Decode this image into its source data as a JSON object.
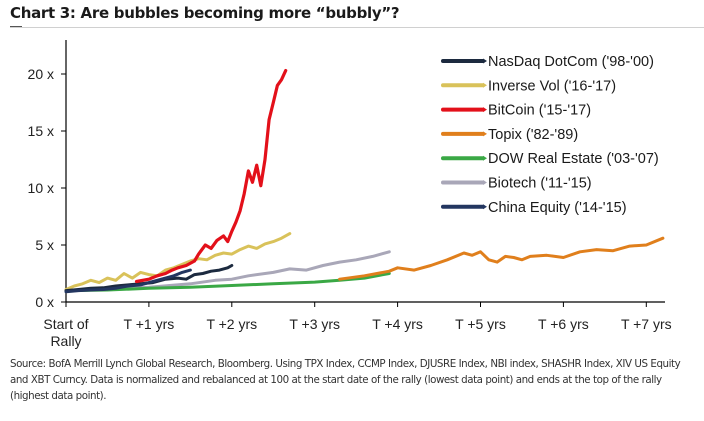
{
  "title": "Chart 3: Are bubbles becoming more “bubbly”?",
  "footnote": "Source: BofA Merrill Lynch Global Research, Bloomberg. Using TPX Index, CCMP Index, DJUSRE Index, NBI index, SHASHR Index, XIV US Equity and XBT Curncy. Data is normalized and rebalanced at 100 at the start date of the rally (lowest data point) and ends at the top of the rally (highest data point).",
  "chart_data": {
    "type": "line",
    "title": "Chart 3: Are bubbles becoming more “bubbly”?",
    "xlabel": "",
    "ylabel": "",
    "xlim": [
      0,
      7.25
    ],
    "ylim": [
      0,
      23
    ],
    "grid": false,
    "legend_position": "top-right",
    "x_ticks": [
      {
        "value": 0,
        "label": [
          "Start of",
          "Rally"
        ]
      },
      {
        "value": 1,
        "label": [
          "T +1 yrs"
        ]
      },
      {
        "value": 2,
        "label": [
          "T +2 yrs"
        ]
      },
      {
        "value": 3,
        "label": [
          "T +3 yrs"
        ]
      },
      {
        "value": 4,
        "label": [
          "T +4 yrs"
        ]
      },
      {
        "value": 5,
        "label": [
          "T +5 yrs"
        ]
      },
      {
        "value": 6,
        "label": [
          "T +6 yrs"
        ]
      },
      {
        "value": 7,
        "label": [
          "T +7 yrs"
        ]
      }
    ],
    "y_ticks": [
      {
        "value": 0,
        "label": "0 x"
      },
      {
        "value": 5,
        "label": "5 x"
      },
      {
        "value": 10,
        "label": "10 x"
      },
      {
        "value": 15,
        "label": "15 x"
      },
      {
        "value": 20,
        "label": "20 x"
      }
    ],
    "series": [
      {
        "name": "NasDaq DotCom ('98-'00)",
        "color": "#1c2a3f",
        "x": [
          0,
          0.15,
          0.3,
          0.45,
          0.6,
          0.75,
          0.9,
          1.05,
          1.2,
          1.35,
          1.45,
          1.55,
          1.65,
          1.75,
          1.85,
          1.95,
          2.0
        ],
        "y": [
          1.0,
          1.1,
          1.2,
          1.25,
          1.4,
          1.5,
          1.6,
          1.7,
          2.0,
          2.1,
          2.0,
          2.4,
          2.5,
          2.7,
          2.8,
          3.0,
          3.2
        ]
      },
      {
        "name": "Inverse Vol ('16-'17)",
        "color": "#d9c25a",
        "x": [
          0,
          0.1,
          0.2,
          0.3,
          0.4,
          0.5,
          0.6,
          0.7,
          0.8,
          0.9,
          1.0,
          1.1,
          1.2,
          1.3,
          1.4,
          1.5,
          1.6,
          1.7,
          1.8,
          1.9,
          2.0,
          2.1,
          2.2,
          2.3,
          2.4,
          2.5,
          2.6,
          2.7
        ],
        "y": [
          1.1,
          1.4,
          1.6,
          1.9,
          1.7,
          2.1,
          1.9,
          2.5,
          2.1,
          2.6,
          2.4,
          2.3,
          2.8,
          3.0,
          3.3,
          3.6,
          3.8,
          3.7,
          4.1,
          4.3,
          4.2,
          4.6,
          4.9,
          4.7,
          5.1,
          5.3,
          5.6,
          6.0
        ]
      },
      {
        "name": "BitCoin ('15-'17)",
        "color": "#e3101a",
        "x": [
          0.85,
          1.0,
          1.1,
          1.2,
          1.28,
          1.35,
          1.45,
          1.55,
          1.6,
          1.68,
          1.75,
          1.82,
          1.9,
          1.95,
          2.0,
          2.05,
          2.1,
          2.15,
          2.2,
          2.25,
          2.3,
          2.35,
          2.4,
          2.45,
          2.5,
          2.55,
          2.6,
          2.65
        ],
        "y": [
          1.8,
          2.0,
          2.3,
          2.5,
          2.8,
          3.0,
          3.2,
          3.6,
          4.2,
          5.0,
          4.7,
          5.4,
          5.8,
          5.3,
          6.2,
          7.0,
          8.0,
          9.5,
          11.5,
          10.5,
          12.0,
          10.2,
          12.5,
          16.0,
          17.5,
          19.0,
          19.5,
          20.3
        ]
      },
      {
        "name": "Topix ('82-'89)",
        "color": "#e07f1c",
        "x": [
          3.3,
          3.6,
          3.9,
          4.0,
          4.2,
          4.4,
          4.6,
          4.8,
          4.9,
          5.0,
          5.1,
          5.2,
          5.3,
          5.4,
          5.5,
          5.6,
          5.8,
          6.0,
          6.2,
          6.4,
          6.6,
          6.8,
          7.0,
          7.2
        ],
        "y": [
          2.0,
          2.3,
          2.7,
          3.0,
          2.8,
          3.2,
          3.7,
          4.3,
          4.1,
          4.4,
          3.7,
          3.5,
          4.0,
          3.9,
          3.7,
          4.0,
          4.1,
          3.9,
          4.4,
          4.6,
          4.5,
          4.9,
          5.0,
          5.6
        ]
      },
      {
        "name": "DOW Real Estate ('03-'07)",
        "color": "#3aa845",
        "x": [
          0,
          0.5,
          1.0,
          1.5,
          2.0,
          2.5,
          3.0,
          3.3,
          3.6,
          3.9
        ],
        "y": [
          1.0,
          1.05,
          1.2,
          1.3,
          1.45,
          1.6,
          1.75,
          1.9,
          2.1,
          2.5
        ]
      },
      {
        "name": "Biotech ('11-'15)",
        "color": "#a9a7b8",
        "x": [
          0,
          0.5,
          1.0,
          1.5,
          1.8,
          2.0,
          2.2,
          2.5,
          2.7,
          2.9,
          3.1,
          3.3,
          3.5,
          3.7,
          3.9
        ],
        "y": [
          1.0,
          1.15,
          1.3,
          1.6,
          1.9,
          2.0,
          2.3,
          2.6,
          2.9,
          2.8,
          3.2,
          3.5,
          3.7,
          4.0,
          4.4
        ]
      },
      {
        "name": "China Equity ('14-'15)",
        "color": "#233660",
        "x": [
          0,
          0.15,
          0.3,
          0.45,
          0.6,
          0.75,
          0.9,
          1.0,
          1.1,
          1.2,
          1.3,
          1.4,
          1.5
        ],
        "y": [
          0.9,
          1.0,
          1.05,
          1.1,
          1.2,
          1.4,
          1.5,
          1.7,
          1.9,
          2.1,
          2.3,
          2.6,
          2.8
        ]
      }
    ]
  }
}
